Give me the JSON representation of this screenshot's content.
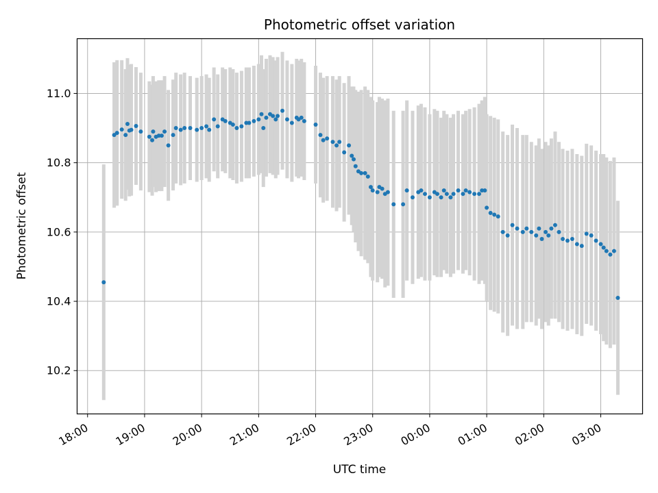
{
  "chart_data": {
    "type": "scatter",
    "title": "Photometric offset variation",
    "xlabel": "UTC time",
    "ylabel": "Photometric offset",
    "x_tick_labels": [
      "18:00",
      "19:00",
      "20:00",
      "21:00",
      "22:00",
      "23:00",
      "00:00",
      "01:00",
      "02:00",
      "03:00"
    ],
    "y_ticks": [
      10.2,
      10.4,
      10.6,
      10.8,
      11.0
    ],
    "y_tick_labels": [
      "10.2",
      "10.4",
      "10.6",
      "10.8",
      "11.0"
    ],
    "xlim": [
      "17:49",
      "27:44"
    ],
    "ylim": [
      10.075,
      11.158
    ],
    "grid": true,
    "colors": {
      "points": "#1f77b4",
      "error_bars": "#d3d3d3",
      "grid": "#b0b0b0"
    },
    "series": [
      {
        "x": [
          "18:17",
          "18:28",
          "18:31",
          "18:36",
          "18:40",
          "18:42",
          "18:44",
          "18:46",
          "18:51",
          "18:56",
          "19:05",
          "19:08",
          "19:09",
          "19:12",
          "19:15",
          "19:18",
          "19:21",
          "19:25",
          "19:30",
          "19:33",
          "19:38",
          "19:42",
          "19:48",
          "19:55",
          "20:00",
          "20:05",
          "20:08",
          "20:13",
          "20:17",
          "20:22",
          "20:25",
          "20:30",
          "20:33",
          "20:37",
          "20:42",
          "20:47",
          "20:50",
          "20:55",
          "21:00",
          "21:03",
          "21:05",
          "21:08",
          "21:12",
          "21:15",
          "21:18",
          "21:20",
          "21:25",
          "21:30",
          "21:35",
          "21:40",
          "21:42",
          "21:45",
          "21:48",
          "22:00",
          "22:05",
          "22:08",
          "22:12",
          "22:18",
          "22:22",
          "22:25",
          "22:30",
          "22:35",
          "22:38",
          "22:40",
          "22:42",
          "22:45",
          "22:48",
          "22:52",
          "22:55",
          "22:58",
          "23:00",
          "23:05",
          "23:07",
          "23:10",
          "23:13",
          "23:16",
          "23:22",
          "23:32",
          "23:36",
          "23:42",
          "23:48",
          "23:51",
          "23:55",
          "24:00",
          "24:05",
          "24:08",
          "24:12",
          "24:15",
          "24:18",
          "24:22",
          "24:25",
          "24:30",
          "24:35",
          "24:38",
          "24:42",
          "24:47",
          "24:52",
          "24:55",
          "24:58",
          "25:00",
          "25:04",
          "25:08",
          "25:12",
          "25:17",
          "25:22",
          "25:27",
          "25:32",
          "25:38",
          "25:42",
          "25:47",
          "25:52",
          "25:55",
          "25:58",
          "26:02",
          "26:05",
          "26:08",
          "26:12",
          "26:16",
          "26:20",
          "26:25",
          "26:30",
          "26:35",
          "26:40",
          "26:45",
          "26:50",
          "26:55",
          "27:00",
          "27:03",
          "27:06",
          "27:10",
          "27:14",
          "27:18"
        ],
        "y": [
          10.455,
          10.88,
          10.886,
          10.896,
          10.88,
          10.912,
          10.893,
          10.895,
          10.906,
          10.89,
          10.875,
          10.865,
          10.89,
          10.875,
          10.878,
          10.878,
          10.89,
          10.85,
          10.88,
          10.9,
          10.895,
          10.9,
          10.9,
          10.895,
          10.9,
          10.905,
          10.895,
          10.925,
          10.905,
          10.925,
          10.92,
          10.915,
          10.91,
          10.9,
          10.905,
          10.915,
          10.915,
          10.92,
          10.925,
          10.94,
          10.9,
          10.93,
          10.94,
          10.935,
          10.925,
          10.935,
          10.95,
          10.925,
          10.915,
          10.93,
          10.925,
          10.93,
          10.92,
          10.91,
          10.88,
          10.865,
          10.87,
          10.86,
          10.85,
          10.86,
          10.83,
          10.85,
          10.82,
          10.81,
          10.79,
          10.775,
          10.77,
          10.77,
          10.76,
          10.73,
          10.72,
          10.715,
          10.73,
          10.725,
          10.71,
          10.715,
          10.68,
          10.68,
          10.72,
          10.7,
          10.715,
          10.72,
          10.71,
          10.7,
          10.715,
          10.71,
          10.7,
          10.72,
          10.71,
          10.7,
          10.71,
          10.72,
          10.71,
          10.72,
          10.715,
          10.71,
          10.71,
          10.72,
          10.72,
          10.67,
          10.655,
          10.65,
          10.645,
          10.6,
          10.59,
          10.62,
          10.61,
          10.6,
          10.61,
          10.6,
          10.59,
          10.61,
          10.58,
          10.6,
          10.59,
          10.61,
          10.62,
          10.6,
          10.58,
          10.575,
          10.58,
          10.565,
          10.56,
          10.595,
          10.59,
          10.575,
          10.565,
          10.555,
          10.545,
          10.535,
          10.545,
          10.41
        ],
        "yerr": [
          0.34,
          0.21,
          0.21,
          0.2,
          0.19,
          0.19,
          0.19,
          0.19,
          0.17,
          0.17,
          0.16,
          0.16,
          0.16,
          0.16,
          0.16,
          0.16,
          0.16,
          0.16,
          0.16,
          0.16,
          0.16,
          0.16,
          0.15,
          0.15,
          0.15,
          0.15,
          0.15,
          0.15,
          0.15,
          0.15,
          0.15,
          0.16,
          0.16,
          0.16,
          0.16,
          0.16,
          0.16,
          0.16,
          0.16,
          0.17,
          0.17,
          0.17,
          0.17,
          0.17,
          0.17,
          0.17,
          0.17,
          0.17,
          0.17,
          0.17,
          0.17,
          0.17,
          0.17,
          0.17,
          0.18,
          0.18,
          0.18,
          0.19,
          0.19,
          0.19,
          0.2,
          0.2,
          0.2,
          0.21,
          0.22,
          0.23,
          0.24,
          0.25,
          0.25,
          0.26,
          0.26,
          0.26,
          0.26,
          0.26,
          0.27,
          0.27,
          0.27,
          0.27,
          0.26,
          0.25,
          0.25,
          0.25,
          0.25,
          0.24,
          0.24,
          0.24,
          0.23,
          0.23,
          0.23,
          0.23,
          0.23,
          0.23,
          0.23,
          0.23,
          0.24,
          0.25,
          0.26,
          0.26,
          0.27,
          0.27,
          0.28,
          0.28,
          0.28,
          0.29,
          0.29,
          0.29,
          0.29,
          0.28,
          0.27,
          0.26,
          0.26,
          0.26,
          0.26,
          0.26,
          0.26,
          0.26,
          0.27,
          0.26,
          0.26,
          0.26,
          0.26,
          0.26,
          0.26,
          0.26,
          0.26,
          0.26,
          0.26,
          0.27,
          0.27,
          0.27,
          0.27,
          0.28
        ]
      }
    ]
  }
}
